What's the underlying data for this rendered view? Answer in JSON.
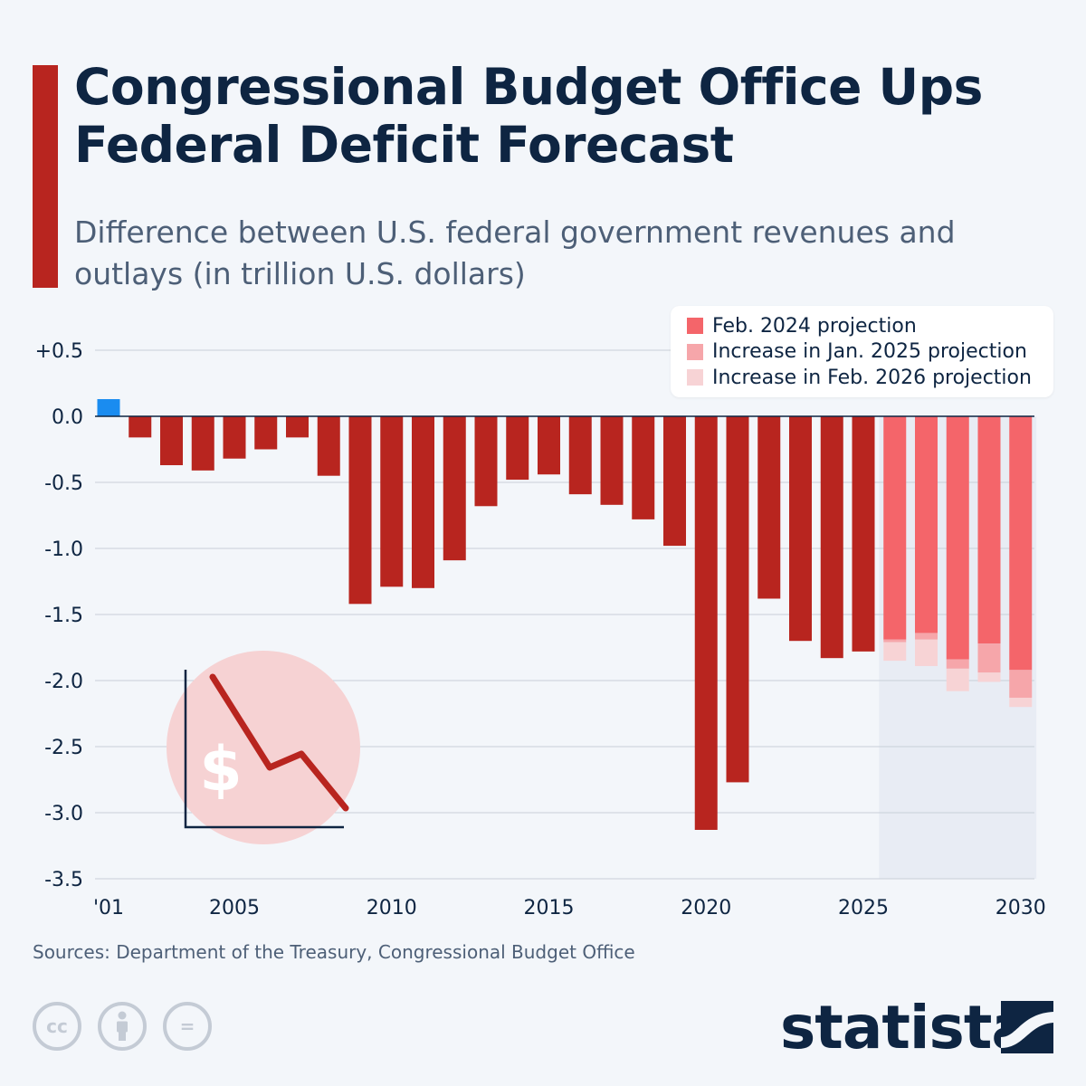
{
  "header": {
    "title": "Congressional Budget Office Ups Federal Deficit Forecast",
    "subtitle": "Difference between U.S. federal government revenues and outlays (in trillion U.S. dollars)"
  },
  "colors": {
    "accent": "#b8251f",
    "actual_deficit": "#b8251f",
    "surplus": "#1a8cf0",
    "feb_2024_projection": "#f4656a",
    "jan_2025_increase": "#f6a6aa",
    "feb_2026_increase": "#f7d3d5",
    "projection_band": "#e8ecf4",
    "text_dark": "#0e2542",
    "text_muted": "#4d5f77"
  },
  "legend": [
    {
      "key": "feb_2024",
      "label": "Feb. 2024 projection",
      "color": "#f4656a"
    },
    {
      "key": "jan_2025",
      "label": "Increase in Jan. 2025 projection",
      "color": "#f6a6aa"
    },
    {
      "key": "feb_2026",
      "label": "Increase in Feb. 2026 projection",
      "color": "#f7d3d5"
    }
  ],
  "chart_data": {
    "type": "bar",
    "ylim": [
      -3.5,
      0.5
    ],
    "y_ticks": [
      {
        "value": 0.5,
        "label": "+0.5"
      },
      {
        "value": 0.0,
        "label": "0.0"
      },
      {
        "value": -0.5,
        "label": "-0.5"
      },
      {
        "value": -1.0,
        "label": "-1.0"
      },
      {
        "value": -1.5,
        "label": "-1.5"
      },
      {
        "value": -2.0,
        "label": "-2.0"
      },
      {
        "value": -2.5,
        "label": "-2.5"
      },
      {
        "value": -3.0,
        "label": "-3.0"
      },
      {
        "value": -3.5,
        "label": "-3.5"
      }
    ],
    "x_ticks": [
      {
        "year": 2001,
        "label": "'01"
      },
      {
        "year": 2005,
        "label": "2005"
      },
      {
        "year": 2010,
        "label": "2010"
      },
      {
        "year": 2015,
        "label": "2015"
      },
      {
        "year": 2020,
        "label": "2020"
      },
      {
        "year": 2025,
        "label": "2025"
      },
      {
        "year": 2030,
        "label": "2030"
      }
    ],
    "actual": [
      {
        "year": 2001,
        "value": 0.13
      },
      {
        "year": 2002,
        "value": -0.16
      },
      {
        "year": 2003,
        "value": -0.37
      },
      {
        "year": 2004,
        "value": -0.41
      },
      {
        "year": 2005,
        "value": -0.32
      },
      {
        "year": 2006,
        "value": -0.25
      },
      {
        "year": 2007,
        "value": -0.16
      },
      {
        "year": 2008,
        "value": -0.45
      },
      {
        "year": 2009,
        "value": -1.42
      },
      {
        "year": 2010,
        "value": -1.29
      },
      {
        "year": 2011,
        "value": -1.3
      },
      {
        "year": 2012,
        "value": -1.09
      },
      {
        "year": 2013,
        "value": -0.68
      },
      {
        "year": 2014,
        "value": -0.48
      },
      {
        "year": 2015,
        "value": -0.44
      },
      {
        "year": 2016,
        "value": -0.59
      },
      {
        "year": 2017,
        "value": -0.67
      },
      {
        "year": 2018,
        "value": -0.78
      },
      {
        "year": 2019,
        "value": -0.98
      },
      {
        "year": 2020,
        "value": -3.13
      },
      {
        "year": 2021,
        "value": -2.77
      },
      {
        "year": 2022,
        "value": -1.38
      },
      {
        "year": 2023,
        "value": -1.7
      },
      {
        "year": 2024,
        "value": -1.83
      },
      {
        "year": 2025,
        "value": -1.78
      }
    ],
    "projections": [
      {
        "year": 2026,
        "feb_2024": -1.69,
        "jan_2025": -1.71,
        "feb_2026": -1.85
      },
      {
        "year": 2027,
        "feb_2024": -1.64,
        "jan_2025": -1.69,
        "feb_2026": -1.89
      },
      {
        "year": 2028,
        "feb_2024": -1.84,
        "jan_2025": -1.91,
        "feb_2026": -2.08
      },
      {
        "year": 2029,
        "feb_2024": -1.72,
        "jan_2025": -1.94,
        "feb_2026": -2.01
      },
      {
        "year": 2030,
        "feb_2024": -1.92,
        "jan_2025": -2.13,
        "feb_2026": -2.2
      }
    ],
    "projection_band_years": [
      2026,
      2030
    ],
    "grid": true,
    "legend_position": "top-right"
  },
  "source": "Sources: Department of the Treasury, Congressional Budget Office",
  "footer": {
    "brand": "statista",
    "license_icons": [
      {
        "name": "cc-icon",
        "glyph": "cc"
      },
      {
        "name": "attribution-icon",
        "glyph": ""
      },
      {
        "name": "no-derivatives-icon",
        "glyph": "="
      }
    ]
  },
  "illustration": {
    "icon": "declining-dollar-chart-icon",
    "glyph": "$"
  }
}
